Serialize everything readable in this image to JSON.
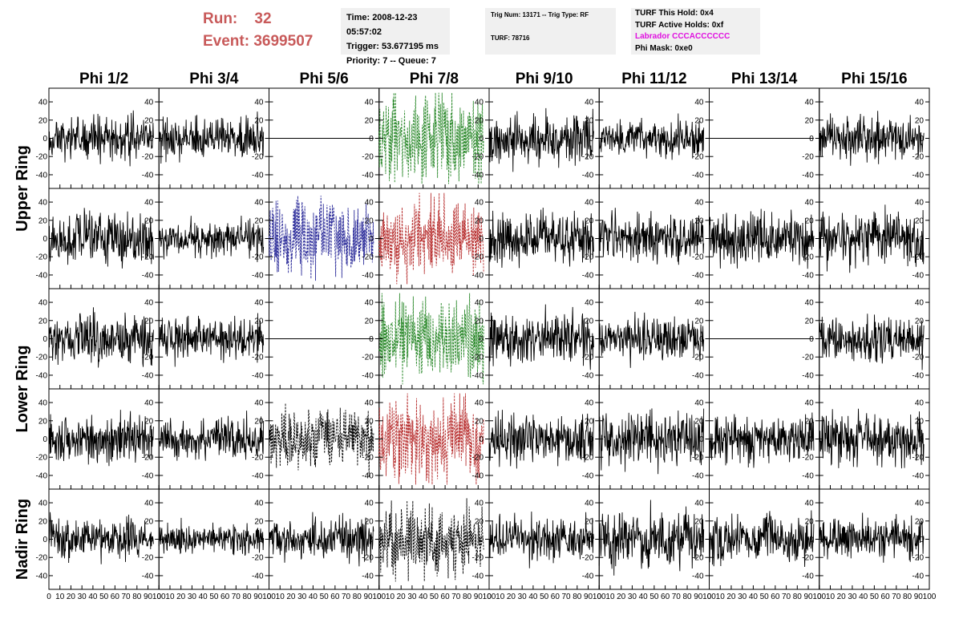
{
  "header": {
    "run_label": "Run:",
    "run_value": "32",
    "event_label": "Event:",
    "event_value": "3699507",
    "time": "Time: 2008-12-23 05:57:02",
    "trigger": "Trigger: 53.677195 ms",
    "priority": "Priority: 7 -- Queue: 7",
    "trig_num": "Trig Num: 13171 -- Trig Type: RF",
    "turf": "TURF: 78716",
    "turf_this_hold": "TURF This Hold: 0x4",
    "turf_active_holds": "TURF Active Holds: 0xf",
    "labrador": "Labrador CCCACCCCCC",
    "phi_mask": "Phi Mask: 0xe0",
    "labrador_color": "#e010e0",
    "run_color": "#c85a5a"
  },
  "chart_data": {
    "type": "line",
    "columns": [
      "Phi 1/2",
      "Phi 3/4",
      "Phi 5/6",
      "Phi 7/8",
      "Phi 9/10",
      "Phi 11/12",
      "Phi 13/14",
      "Phi 15/16"
    ],
    "ring_labels": [
      {
        "label": "Upper Ring",
        "rows": [
          0,
          1
        ]
      },
      {
        "label": "Lower Ring",
        "rows": [
          2,
          3
        ]
      },
      {
        "label": "Nadir Ring",
        "rows": [
          4
        ]
      }
    ],
    "xlim": [
      0,
      100
    ],
    "ylim": [
      -55,
      55
    ],
    "y_ticks": [
      -40,
      -20,
      0,
      20,
      40
    ],
    "x_tick_labels": [
      "0",
      "10",
      "20",
      "30",
      "40",
      "50",
      "60",
      "70",
      "80",
      "90",
      "100"
    ],
    "panels": [
      [
        {
          "style": "solid",
          "color": "#000000",
          "amplitude": 14,
          "seed": 11
        },
        {
          "style": "solid",
          "color": "#000000",
          "amplitude": 13,
          "seed": 12
        },
        {
          "style": "flat",
          "color": "#000000",
          "amplitude": 0,
          "seed": 13
        },
        {
          "style": "dashed",
          "color": "#2e8b2e",
          "amplitude": 32,
          "seed": 14
        },
        {
          "style": "solid",
          "color": "#000000",
          "amplitude": 17,
          "seed": 15
        },
        {
          "style": "solid",
          "color": "#000000",
          "amplitude": 12,
          "seed": 16
        },
        {
          "style": "flat",
          "color": "#000000",
          "amplitude": 0,
          "seed": 17
        },
        {
          "style": "solid",
          "color": "#000000",
          "amplitude": 15,
          "seed": 18
        }
      ],
      [
        {
          "style": "solid",
          "color": "#000000",
          "amplitude": 18,
          "seed": 21
        },
        {
          "style": "solid",
          "color": "#000000",
          "amplitude": 12,
          "seed": 22
        },
        {
          "style": "dashed",
          "color": "#2c2c9a",
          "amplitude": 26,
          "seed": 23
        },
        {
          "style": "dashed",
          "color": "#b83030",
          "amplitude": 28,
          "seed": 24
        },
        {
          "style": "solid",
          "color": "#000000",
          "amplitude": 17,
          "seed": 25
        },
        {
          "style": "solid",
          "color": "#000000",
          "amplitude": 16,
          "seed": 26
        },
        {
          "style": "solid",
          "color": "#000000",
          "amplitude": 17,
          "seed": 27
        },
        {
          "style": "solid",
          "color": "#000000",
          "amplitude": 17,
          "seed": 28
        }
      ],
      [
        {
          "style": "solid",
          "color": "#000000",
          "amplitude": 16,
          "seed": 31
        },
        {
          "style": "solid",
          "color": "#000000",
          "amplitude": 15,
          "seed": 32
        },
        {
          "style": "flat",
          "color": "#000000",
          "amplitude": 0,
          "seed": 33
        },
        {
          "style": "dashed",
          "color": "#2e8b2e",
          "amplitude": 27,
          "seed": 34
        },
        {
          "style": "solid",
          "color": "#000000",
          "amplitude": 17,
          "seed": 35
        },
        {
          "style": "solid",
          "color": "#000000",
          "amplitude": 15,
          "seed": 36
        },
        {
          "style": "flat",
          "color": "#000000",
          "amplitude": 0,
          "seed": 37
        },
        {
          "style": "solid",
          "color": "#000000",
          "amplitude": 15,
          "seed": 38
        }
      ],
      [
        {
          "style": "solid",
          "color": "#000000",
          "amplitude": 15,
          "seed": 41
        },
        {
          "style": "solid",
          "color": "#000000",
          "amplitude": 14,
          "seed": 42
        },
        {
          "style": "dashed",
          "color": "#000000",
          "amplitude": 20,
          "seed": 43
        },
        {
          "style": "dashed",
          "color": "#b83030",
          "amplitude": 26,
          "seed": 44
        },
        {
          "style": "solid",
          "color": "#000000",
          "amplitude": 17,
          "seed": 45
        },
        {
          "style": "solid",
          "color": "#000000",
          "amplitude": 18,
          "seed": 46
        },
        {
          "style": "solid",
          "color": "#000000",
          "amplitude": 15,
          "seed": 47
        },
        {
          "style": "solid",
          "color": "#000000",
          "amplitude": 17,
          "seed": 48
        }
      ],
      [
        {
          "style": "solid",
          "color": "#000000",
          "amplitude": 13,
          "seed": 51
        },
        {
          "style": "solid",
          "color": "#000000",
          "amplitude": 11,
          "seed": 52
        },
        {
          "style": "solid",
          "color": "#000000",
          "amplitude": 14,
          "seed": 53
        },
        {
          "style": "dashed",
          "color": "#000000",
          "amplitude": 24,
          "seed": 54
        },
        {
          "style": "solid",
          "color": "#000000",
          "amplitude": 15,
          "seed": 55
        },
        {
          "style": "solid",
          "color": "#000000",
          "amplitude": 20,
          "seed": 56
        },
        {
          "style": "solid",
          "color": "#000000",
          "amplitude": 16,
          "seed": 57
        },
        {
          "style": "solid",
          "color": "#000000",
          "amplitude": 14,
          "seed": 58
        }
      ]
    ]
  }
}
